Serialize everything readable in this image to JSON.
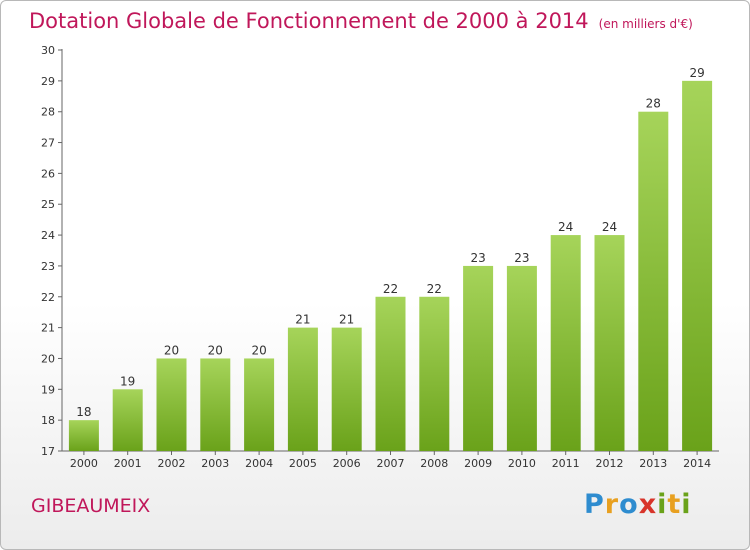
{
  "chart_data": {
    "type": "bar",
    "title": "Dotation Globale de Fonctionnement de 2000 à 2014",
    "unit_label": "(en milliers d'€)",
    "categories": [
      "2000",
      "2001",
      "2002",
      "2003",
      "2004",
      "2005",
      "2006",
      "2007",
      "2008",
      "2009",
      "2010",
      "2011",
      "2012",
      "2013",
      "2014"
    ],
    "values": [
      18,
      19,
      20,
      20,
      20,
      21,
      21,
      22,
      22,
      23,
      23,
      24,
      24,
      28,
      29
    ],
    "ylim": [
      17,
      30
    ],
    "yticks": [
      17,
      18,
      19,
      20,
      21,
      22,
      23,
      24,
      25,
      26,
      27,
      28,
      29,
      30
    ],
    "grid": false,
    "bar_color_top": "#a6d45a",
    "bar_color_bottom": "#6aa21a",
    "title_color": "#c0175a"
  },
  "commune": "GIBEAUMEIX",
  "brand": {
    "letters": [
      {
        "ch": "P",
        "color": "#2e8ccf"
      },
      {
        "ch": "r",
        "color": "#e8a020"
      },
      {
        "ch": "o",
        "color": "#2e8ccf"
      },
      {
        "ch": "x",
        "color": "#d8342a"
      },
      {
        "ch": "i",
        "color": "#6aa21a"
      },
      {
        "ch": "t",
        "color": "#e8a020"
      },
      {
        "ch": "i",
        "color": "#6aa21a"
      }
    ]
  }
}
